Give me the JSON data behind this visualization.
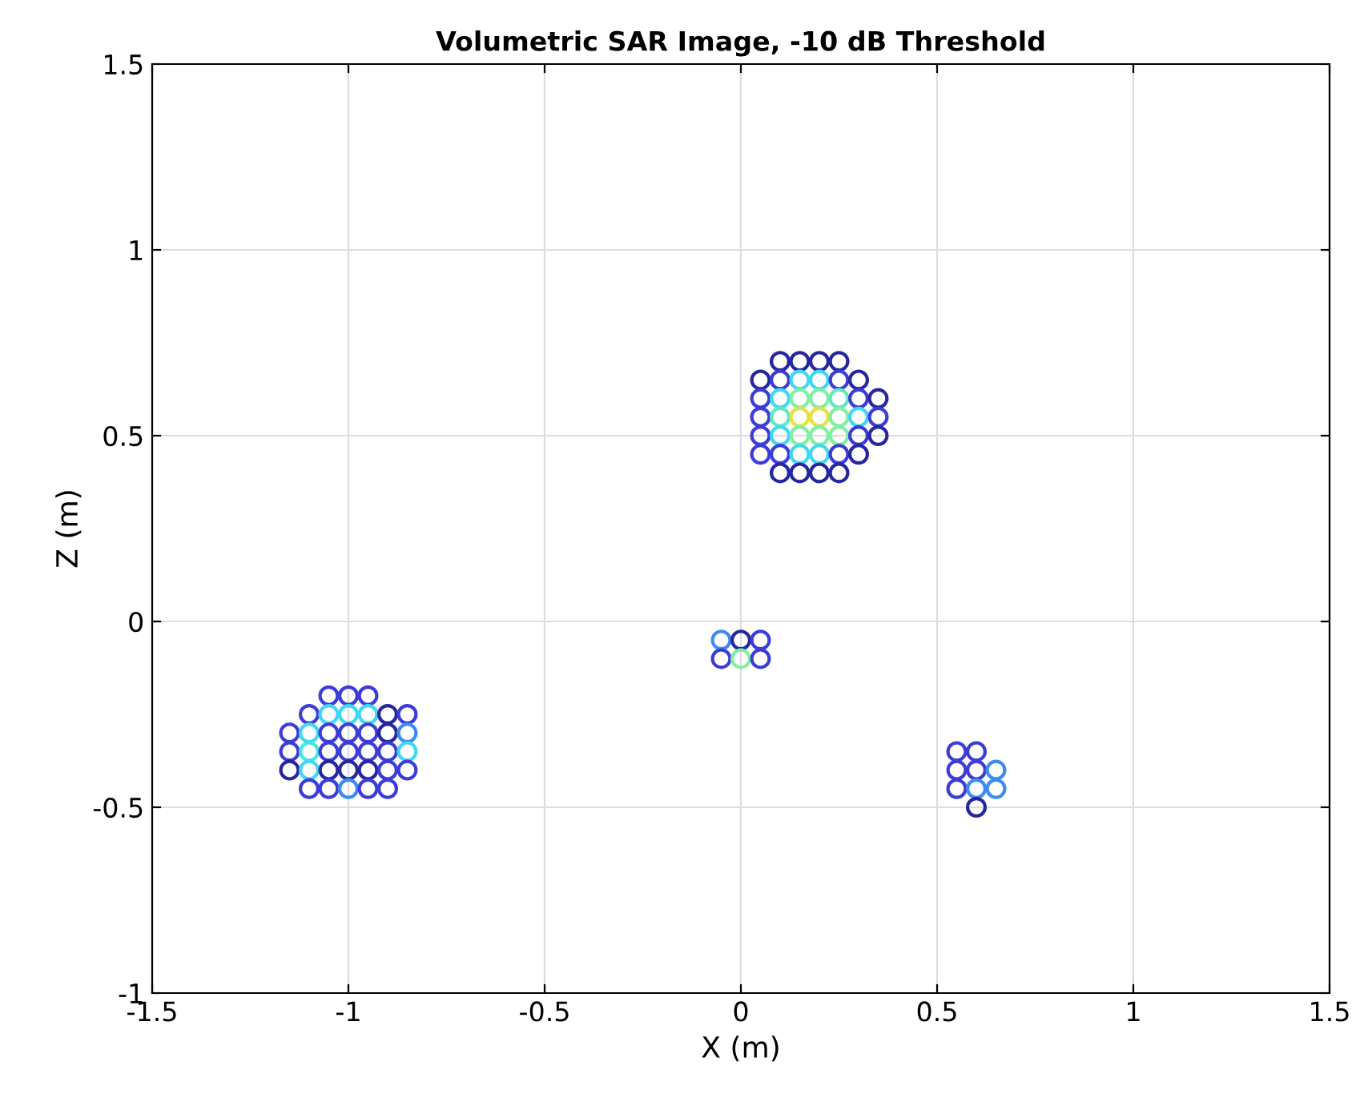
{
  "chart_data": {
    "type": "scatter",
    "title": "Volumetric SAR Image, -10 dB Threshold",
    "xlabel": "X (m)",
    "ylabel": "Z (m)",
    "xlim": [
      -1.5,
      1.5
    ],
    "xticks": [
      -1.5,
      -1,
      -0.5,
      0,
      0.5,
      1,
      1.5
    ],
    "ylim": [
      -1,
      1.5
    ],
    "yticks": [
      -1,
      -0.5,
      0,
      0.5,
      1,
      1.5
    ],
    "grid": true,
    "marker": "circle",
    "series": [
      {
        "x": [
          0.1,
          0.15,
          0.2,
          0.25,
          0.05,
          0.1,
          0.15,
          0.2,
          0.25,
          0.3,
          0.05,
          0.1,
          0.15,
          0.2,
          0.25,
          0.3,
          0.35,
          0.05,
          0.1,
          0.15,
          0.2,
          0.25,
          0.3,
          0.35,
          0.05,
          0.1,
          0.15,
          0.2,
          0.25,
          0.3,
          0.35,
          0.05,
          0.1,
          0.15,
          0.2,
          0.25,
          0.3,
          0.1,
          0.15,
          0.2,
          0.25,
          -1.05,
          -1.0,
          -0.95,
          -1.1,
          -1.05,
          -1.0,
          -0.95,
          -0.9,
          -0.85,
          -1.15,
          -1.1,
          -1.05,
          -1.0,
          -0.95,
          -0.9,
          -0.85,
          -1.15,
          -1.1,
          -1.05,
          -1.0,
          -0.95,
          -0.9,
          -0.85,
          -1.15,
          -1.1,
          -1.05,
          -1.0,
          -0.95,
          -0.9,
          -0.85,
          -1.1,
          -1.05,
          -1.0,
          -0.95,
          -0.9,
          -0.05,
          0,
          0.05,
          -0.05,
          0,
          0.05,
          0.55,
          0.6,
          0.55,
          0.6,
          0.65,
          0.55,
          0.6,
          0.65,
          0.6
        ],
        "values": [
          0.7,
          0.7,
          0.7,
          0.7,
          0.65,
          0.65,
          0.65,
          0.65,
          0.65,
          0.65,
          0.6,
          0.6,
          0.6,
          0.6,
          0.6,
          0.6,
          0.6,
          0.55,
          0.55,
          0.55,
          0.55,
          0.55,
          0.55,
          0.55,
          0.5,
          0.5,
          0.5,
          0.5,
          0.5,
          0.5,
          0.5,
          0.45,
          0.45,
          0.45,
          0.45,
          0.45,
          0.45,
          0.4,
          0.4,
          0.4,
          0.4,
          -0.2,
          -0.2,
          -0.2,
          -0.25,
          -0.25,
          -0.25,
          -0.25,
          -0.25,
          -0.25,
          -0.3,
          -0.3,
          -0.3,
          -0.3,
          -0.3,
          -0.3,
          -0.3,
          -0.35,
          -0.35,
          -0.35,
          -0.35,
          -0.35,
          -0.35,
          -0.35,
          -0.4,
          -0.4,
          -0.4,
          -0.4,
          -0.4,
          -0.4,
          -0.4,
          -0.45,
          -0.45,
          -0.45,
          -0.45,
          -0.45,
          -0.05,
          -0.05,
          -0.05,
          -0.1,
          -0.1,
          -0.1,
          -0.35,
          -0.35,
          -0.4,
          -0.4,
          -0.4,
          -0.45,
          -0.45,
          -0.45,
          -0.5
        ],
        "colors": [
          "#26269e",
          "#26269e",
          "#26269e",
          "#26269e",
          "#26269e",
          "#3c3cd8",
          "#40d8f0",
          "#40d8f0",
          "#3c3cd8",
          "#26269e",
          "#3c3cd8",
          "#40d8f0",
          "#80f0a0",
          "#80f0a0",
          "#60e8c0",
          "#3c3cd8",
          "#26269e",
          "#3c3cd8",
          "#60e8c0",
          "#e8e040",
          "#e8e040",
          "#80f0a0",
          "#40d8f0",
          "#3c3cd8",
          "#3c3cd8",
          "#40d8f0",
          "#80f0a0",
          "#80f0a0",
          "#80f0a0",
          "#3c3cd8",
          "#26269e",
          "#3c3cd8",
          "#3c3cd8",
          "#40d8f0",
          "#40d8f0",
          "#3c3cd8",
          "#26269e",
          "#26269e",
          "#26269e",
          "#26269e",
          "#26269e",
          "#3c3cd8",
          "#3c3cd8",
          "#3c3cd8",
          "#3c3cd8",
          "#40d8f0",
          "#40d8f0",
          "#40d8f0",
          "#26269e",
          "#3c3cd8",
          "#3c3cd8",
          "#40d8f0",
          "#3c3cd8",
          "#3c3cd8",
          "#3c3cd8",
          "#26269e",
          "#3c8cf0",
          "#3c3cd8",
          "#40e8e0",
          "#3c3cd8",
          "#3c3cd8",
          "#3c3cd8",
          "#3c3cd8",
          "#40d8f0",
          "#26269e",
          "#40d8f0",
          "#26269e",
          "#26269e",
          "#26269e",
          "#3c3cd8",
          "#3c3cd8",
          "#3c3cd8",
          "#3c3cd8",
          "#3c8cf0",
          "#3c3cd8",
          "#3c3cd8",
          "#3c8cf0",
          "#26269e",
          "#3c3cd8",
          "#3c3cd8",
          "#80f0a0",
          "#3c3cd8",
          "#3c3cd8",
          "#3c3cd8",
          "#3c3cd8",
          "#3c3cd8",
          "#3c8cf0",
          "#3c3cd8",
          "#3c8cf0",
          "#3c8cf0",
          "#26269e"
        ]
      }
    ]
  }
}
